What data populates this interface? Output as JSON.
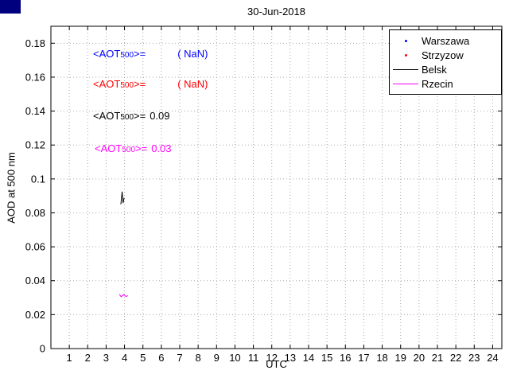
{
  "figure": {
    "background": "#ffffff"
  },
  "annotation_label": {
    "open": "<AOT",
    "sub": "500",
    "close": ">="
  },
  "chart_data": {
    "type": "line",
    "title": "30-Jun-2018",
    "xlabel": "UTC",
    "ylabel": "AOD at 500 nm",
    "xlim": [
      0,
      24.5
    ],
    "ylim": [
      0,
      0.19
    ],
    "grid": true,
    "legend_position": "top-right",
    "xticks": [
      1,
      2,
      3,
      4,
      5,
      6,
      7,
      8,
      9,
      10,
      11,
      12,
      13,
      14,
      15,
      16,
      17,
      18,
      19,
      20,
      21,
      22,
      23,
      24
    ],
    "xtick_labels": [
      "1",
      "2",
      "3",
      "4",
      "5",
      "6",
      "7",
      "8",
      "9",
      "10",
      "11",
      "12",
      "13",
      "14",
      "15",
      "16",
      "17",
      "18",
      "19",
      "20",
      "21",
      "22",
      "23",
      "24"
    ],
    "yticks": [
      0,
      0.02,
      0.04,
      0.06,
      0.08,
      0.1,
      0.12,
      0.14,
      0.16,
      0.18
    ],
    "ytick_labels": [
      "0",
      "0.02",
      "0.04",
      "0.06",
      "0.08",
      "0.1",
      "0.12",
      "0.14",
      "0.16",
      "0.18"
    ],
    "series": [
      {
        "name": "Warszawa",
        "color": "#0000ff",
        "style": "points",
        "marker": "dot",
        "points": []
      },
      {
        "name": "Strzyzow",
        "color": "#ff0000",
        "style": "points",
        "marker": "dot",
        "points": []
      },
      {
        "name": "Belsk",
        "color": "#000000",
        "style": "line",
        "points": [
          [
            3.8,
            0.085
          ],
          [
            3.87,
            0.0925
          ],
          [
            3.92,
            0.0858
          ],
          [
            3.98,
            0.0888
          ]
        ]
      },
      {
        "name": "Rzecin",
        "color": "#ff00ff",
        "style": "line",
        "points": [
          [
            3.72,
            0.032
          ],
          [
            3.82,
            0.0305
          ],
          [
            3.95,
            0.0318
          ],
          [
            4.08,
            0.0307
          ],
          [
            4.18,
            0.0312
          ]
        ]
      }
    ],
    "annotations": [
      {
        "series": "Warszawa",
        "color": "#0000ff",
        "label": "<AOT500>=",
        "value": "( NaN)",
        "gap": true
      },
      {
        "series": "Strzyzow",
        "color": "#ff0000",
        "label": "<AOT500>=",
        "value": "( NaN)",
        "gap": true
      },
      {
        "series": "Belsk",
        "color": "#000000",
        "label": "<AOT500>=",
        "value": "0.09",
        "gap": false
      },
      {
        "series": "Rzecin",
        "color": "#ff00ff",
        "label": "<AOT500>=",
        "value": "0.03",
        "gap": false
      }
    ]
  }
}
